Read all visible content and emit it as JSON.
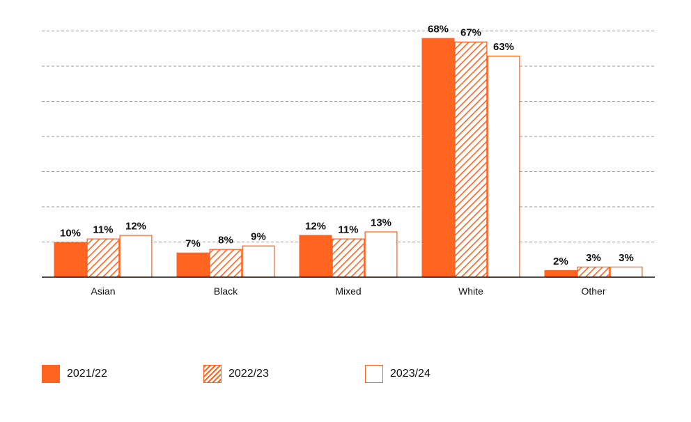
{
  "chart_data": {
    "type": "bar",
    "categories": [
      "Asian",
      "Black",
      "Mixed",
      "White",
      "Other"
    ],
    "series": [
      {
        "name": "2021/22",
        "values": [
          10,
          7,
          12,
          68,
          2
        ],
        "style": "solid"
      },
      {
        "name": "2022/23",
        "values": [
          11,
          8,
          11,
          67,
          3
        ],
        "style": "hatched"
      },
      {
        "name": "2023/24",
        "values": [
          12,
          9,
          13,
          63,
          3
        ],
        "style": "outline"
      }
    ],
    "value_suffix": "%",
    "ylim": [
      0,
      70
    ],
    "grid": true,
    "legend_position": "bottom-left",
    "title": "",
    "xlabel": "",
    "ylabel": ""
  },
  "colors": {
    "accent": "#FF6521",
    "grid": "#9a9a9a",
    "axis": "#111111",
    "text": "#111111"
  }
}
